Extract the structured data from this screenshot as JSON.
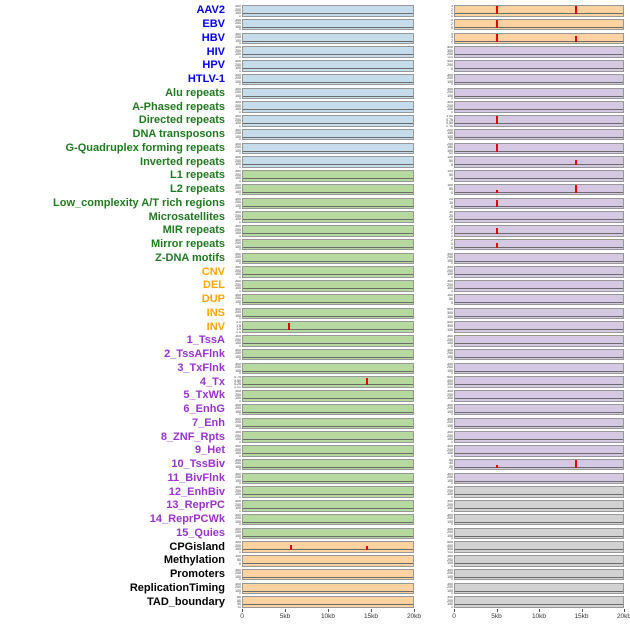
{
  "colors": {
    "label": {
      "virus": "#0000ee",
      "repeat": "#1f7a1f",
      "sv": "#ffa500",
      "chromatin": "#9933cc",
      "other": "#000000"
    },
    "bg": {
      "blue": "#c5dcea",
      "green": "#b5d99e",
      "orange": "#fbd2a0",
      "purple": "#d5c8e3",
      "gray": "#d2d2d2"
    },
    "spike": "#e60000",
    "baseline": "#6b6b6b"
  },
  "chart_data": {
    "type": "line",
    "description": "Two columns of genomic feature density tracks over a 0-20kb window; red peaks mark enriched positions near 5kb and 15kb.",
    "x_axis": {
      "ticks": [
        "0",
        "5kb",
        "10kb",
        "15kb",
        "20kb"
      ],
      "range_kb": [
        0,
        20
      ]
    },
    "default_ticks": [
      "300",
      "200",
      "100",
      "0"
    ],
    "rows": [
      {
        "label": "AAV2",
        "group": "virus",
        "left": {
          "bg": "blue"
        },
        "right": {
          "bg": "orange",
          "ticks": [
            "3",
            "2",
            "1",
            "0"
          ],
          "spikes": [
            [
              0.25,
              0.92
            ],
            [
              0.72,
              0.88
            ]
          ]
        }
      },
      {
        "label": "EBV",
        "group": "virus",
        "left": {
          "bg": "blue"
        },
        "right": {
          "bg": "orange",
          "ticks": [
            "4",
            "2",
            "0"
          ],
          "spikes": [
            [
              0.25,
              0.8
            ]
          ]
        }
      },
      {
        "label": "HBV",
        "group": "virus",
        "left": {
          "bg": "blue"
        },
        "right": {
          "bg": "orange",
          "ticks": [
            "4",
            "3",
            "2",
            "1",
            "0"
          ],
          "spikes": [
            [
              0.25,
              0.9
            ],
            [
              0.72,
              0.6
            ]
          ]
        }
      },
      {
        "label": "HIV",
        "group": "virus",
        "left": {
          "bg": "blue"
        },
        "right": {
          "bg": "purple",
          "ticks": [
            "400",
            "300",
            "200",
            "100",
            "0"
          ]
        }
      },
      {
        "label": "HPV",
        "group": "virus",
        "left": {
          "bg": "blue"
        },
        "right": {
          "bg": "purple",
          "ticks": [
            "400",
            "200",
            "0"
          ]
        }
      },
      {
        "label": "HTLV-1",
        "group": "virus",
        "left": {
          "bg": "blue"
        },
        "right": {
          "bg": "purple"
        }
      },
      {
        "label": "Alu repeats",
        "group": "repeat",
        "left": {
          "bg": "blue"
        },
        "right": {
          "bg": "purple"
        }
      },
      {
        "label": "A-Phased repeats",
        "group": "repeat",
        "left": {
          "bg": "blue"
        },
        "right": {
          "bg": "purple"
        }
      },
      {
        "label": "Directed repeats",
        "group": "repeat",
        "left": {
          "bg": "blue"
        },
        "right": {
          "bg": "purple",
          "ticks": [
            "1.00",
            "0.75",
            "0.50",
            "0.25",
            "0.00"
          ],
          "spikes": [
            [
              0.25,
              0.95
            ]
          ]
        }
      },
      {
        "label": "DNA transposons",
        "group": "repeat",
        "left": {
          "bg": "blue"
        },
        "right": {
          "bg": "purple",
          "ticks": [
            "200",
            "150",
            "100",
            "50",
            "0"
          ]
        }
      },
      {
        "label": "G-Quadruplex forming repeats",
        "group": "repeat",
        "left": {
          "bg": "blue"
        },
        "right": {
          "bg": "purple",
          "ticks": [
            "200",
            "150",
            "100",
            "50"
          ],
          "spikes": [
            [
              0.25,
              0.8
            ]
          ]
        }
      },
      {
        "label": "Inverted repeats",
        "group": "repeat",
        "left": {
          "bg": "blue"
        },
        "right": {
          "bg": "purple",
          "ticks": [
            "100",
            "50",
            "0"
          ],
          "spikes": [
            [
              0.72,
              0.55
            ]
          ]
        }
      },
      {
        "label": "L1 repeats",
        "group": "repeat",
        "left": {
          "bg": "green"
        },
        "right": {
          "bg": "purple",
          "ticks": [
            "100",
            "50",
            "0"
          ]
        }
      },
      {
        "label": "L2 repeats",
        "group": "repeat",
        "left": {
          "bg": "green"
        },
        "right": {
          "bg": "purple",
          "ticks": [
            "100",
            "50",
            "0"
          ],
          "spikes": [
            [
              0.25,
              0.3
            ],
            [
              0.72,
              0.82
            ]
          ]
        }
      },
      {
        "label": "Low_complexity A/T rich regions",
        "group": "repeat",
        "left": {
          "bg": "green"
        },
        "right": {
          "bg": "purple",
          "ticks": [
            "20",
            "10",
            "0"
          ],
          "spikes": [
            [
              0.25,
              0.75
            ]
          ]
        }
      },
      {
        "label": "Microsatellites",
        "group": "repeat",
        "left": {
          "bg": "green"
        },
        "right": {
          "bg": "purple",
          "ticks": [
            "30",
            "20",
            "10",
            "0"
          ]
        }
      },
      {
        "label": "MIR repeats",
        "group": "repeat",
        "left": {
          "bg": "green"
        },
        "right": {
          "bg": "purple",
          "ticks": [
            "3",
            "2",
            "1",
            "0"
          ],
          "spikes": [
            [
              0.25,
              0.6
            ]
          ]
        }
      },
      {
        "label": "Mirror repeats",
        "group": "repeat",
        "left": {
          "bg": "green"
        },
        "right": {
          "bg": "purple",
          "ticks": [
            "2",
            "1",
            "0"
          ],
          "spikes": [
            [
              0.25,
              0.55
            ]
          ]
        }
      },
      {
        "label": "Z-DNA motifs",
        "group": "repeat",
        "left": {
          "bg": "green"
        },
        "right": {
          "bg": "purple"
        }
      },
      {
        "label": "CNV",
        "group": "sv",
        "left": {
          "bg": "green"
        },
        "right": {
          "bg": "purple"
        }
      },
      {
        "label": "DEL",
        "group": "sv",
        "left": {
          "bg": "green"
        },
        "right": {
          "bg": "purple"
        }
      },
      {
        "label": "DUP",
        "group": "sv",
        "left": {
          "bg": "green"
        },
        "right": {
          "bg": "purple",
          "ticks": [
            "100",
            "50",
            "0"
          ]
        }
      },
      {
        "label": "INS",
        "group": "sv",
        "left": {
          "bg": "green"
        },
        "right": {
          "bg": "purple",
          "ticks": [
            "500",
            "300",
            "100"
          ]
        }
      },
      {
        "label": "INV",
        "group": "sv",
        "left": {
          "bg": "green",
          "ticks": [
            "2.0",
            "1.5",
            "1.0",
            "0.5",
            "0.0"
          ],
          "spikes": [
            [
              0.27,
              0.8
            ]
          ]
        },
        "right": {
          "bg": "purple",
          "ticks": [
            "500",
            "300",
            "100"
          ]
        }
      },
      {
        "label": "1_TssA",
        "group": "chromatin",
        "left": {
          "bg": "green"
        },
        "right": {
          "bg": "purple"
        }
      },
      {
        "label": "2_TssAFlnk",
        "group": "chromatin",
        "left": {
          "bg": "green"
        },
        "right": {
          "bg": "purple"
        }
      },
      {
        "label": "3_TxFlnk",
        "group": "chromatin",
        "left": {
          "bg": "green"
        },
        "right": {
          "bg": "purple"
        }
      },
      {
        "label": "4_Tx",
        "group": "chromatin",
        "left": {
          "bg": "green",
          "ticks": [
            "0.75",
            "0.50",
            "0.25",
            "0.00"
          ],
          "spikes": [
            [
              0.73,
              0.8
            ]
          ]
        },
        "right": {
          "bg": "purple",
          "ticks": [
            "500",
            "400",
            "300",
            "200",
            "100"
          ]
        }
      },
      {
        "label": "5_TxWk",
        "group": "chromatin",
        "left": {
          "bg": "green"
        },
        "right": {
          "bg": "purple"
        }
      },
      {
        "label": "6_EnhG",
        "group": "chromatin",
        "left": {
          "bg": "green"
        },
        "right": {
          "bg": "purple"
        }
      },
      {
        "label": "7_Enh",
        "group": "chromatin",
        "left": {
          "bg": "green"
        },
        "right": {
          "bg": "purple"
        }
      },
      {
        "label": "8_ZNF_Rpts",
        "group": "chromatin",
        "left": {
          "bg": "green"
        },
        "right": {
          "bg": "purple"
        }
      },
      {
        "label": "9_Het",
        "group": "chromatin",
        "left": {
          "bg": "green"
        },
        "right": {
          "bg": "purple"
        }
      },
      {
        "label": "10_TssBiv",
        "group": "chromatin",
        "left": {
          "bg": "green"
        },
        "right": {
          "bg": "purple",
          "ticks": [
            "60",
            "40",
            "20",
            "0"
          ],
          "spikes": [
            [
              0.25,
              0.3
            ],
            [
              0.72,
              0.82
            ]
          ]
        }
      },
      {
        "label": "11_BivFlnk",
        "group": "chromatin",
        "left": {
          "bg": "green"
        },
        "right": {
          "bg": "purple"
        }
      },
      {
        "label": "12_EnhBiv",
        "group": "chromatin",
        "left": {
          "bg": "green"
        },
        "right": {
          "bg": "gray"
        }
      },
      {
        "label": "13_ReprPC",
        "group": "chromatin",
        "left": {
          "bg": "green"
        },
        "right": {
          "bg": "gray"
        }
      },
      {
        "label": "14_ReprPCWk",
        "group": "chromatin",
        "left": {
          "bg": "green"
        },
        "right": {
          "bg": "gray"
        }
      },
      {
        "label": "15_Quies",
        "group": "chromatin",
        "left": {
          "bg": "green"
        },
        "right": {
          "bg": "gray"
        }
      },
      {
        "label": "CPGisland",
        "group": "other",
        "left": {
          "bg": "orange",
          "spikes": [
            [
              0.28,
              0.55
            ],
            [
              0.73,
              0.5
            ]
          ]
        },
        "right": {
          "bg": "gray",
          "ticks": [
            "500",
            "400",
            "300",
            "200",
            "100"
          ]
        }
      },
      {
        "label": "Methylation",
        "group": "other",
        "left": {
          "bg": "orange",
          "ticks": [
            "100",
            "50",
            "0"
          ]
        },
        "right": {
          "bg": "gray"
        }
      },
      {
        "label": "Promoters",
        "group": "other",
        "left": {
          "bg": "orange"
        },
        "right": {
          "bg": "gray"
        }
      },
      {
        "label": "ReplicationTiming",
        "group": "other",
        "left": {
          "bg": "orange"
        },
        "right": {
          "bg": "gray"
        }
      },
      {
        "label": "TAD_boundary",
        "group": "other",
        "left": {
          "bg": "orange",
          "ticks": [
            "80",
            "60",
            "40",
            "20",
            "0"
          ]
        },
        "right": {
          "bg": "gray"
        }
      }
    ]
  }
}
